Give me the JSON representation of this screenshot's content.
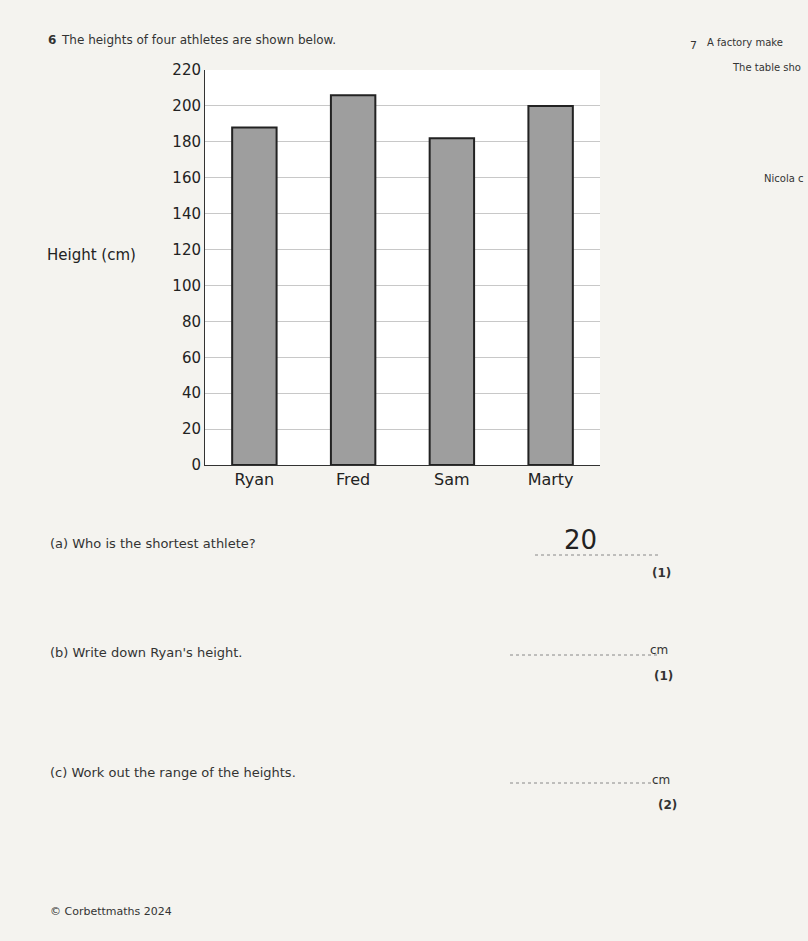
{
  "chart_data": {
    "type": "bar",
    "title": "The heights of four athletes are shown below.",
    "y_label": "Height (cm)",
    "categories": [
      "Ryan",
      "Fred",
      "Sam",
      "Marty"
    ],
    "values": [
      188,
      206,
      182,
      200
    ],
    "color": "#9e9e9e",
    "ylim": [
      0,
      220
    ],
    "yticks": [
      0,
      20,
      40,
      60,
      80,
      100,
      120,
      140,
      160,
      180,
      200,
      220
    ],
    "grid": true,
    "annotations": [
      "6",
      "(a) Who is the shortest athlete?",
      "20",
      "(1)",
      "(b) Write down Ryan's height.",
      "cm",
      "(1)",
      "(c) Work out the range of the heights.",
      "cm",
      "(2)",
      "© Corbettmaths 2024",
      "7",
      "A factory make",
      "The table sho",
      "Nicola c"
    ]
  }
}
